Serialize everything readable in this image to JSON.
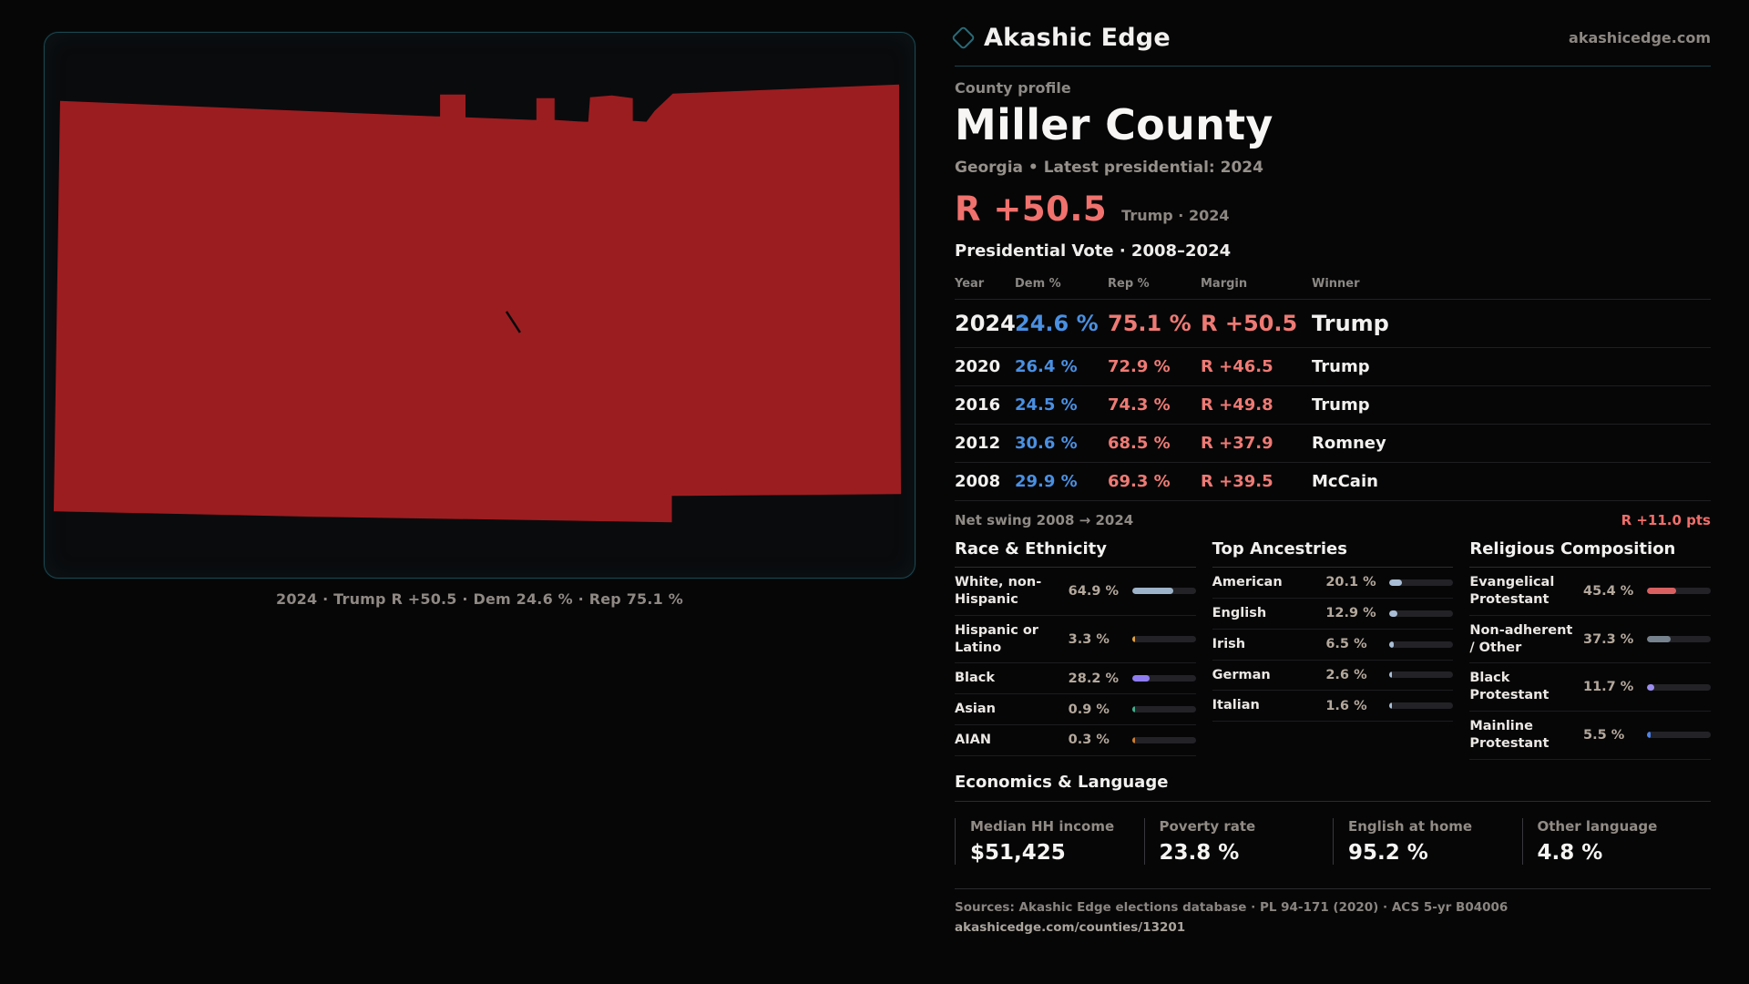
{
  "brand": {
    "name": "Akashic Edge",
    "domain": "akashicedge.com"
  },
  "profile": {
    "kicker": "County profile",
    "title": "Miller County",
    "subtitle": "Georgia • Latest presidential: 2024"
  },
  "headline": {
    "value": "R +50.5",
    "context": "Trump · 2024"
  },
  "map": {
    "caption": "2024 · Trump R +50.5 · Dem 24.6 % · Rep 75.1 %",
    "county_fill": "#9c1d20",
    "panel_border": "#1a4750"
  },
  "vote_table": {
    "title": "Presidential Vote · 2008–2024",
    "columns": {
      "year": "Year",
      "dem": "Dem %",
      "rep": "Rep %",
      "margin": "Margin",
      "winner": "Winner"
    },
    "rows": [
      {
        "year": "2024",
        "dem": "24.6 %",
        "rep": "75.1 %",
        "margin": "R +50.5",
        "winner": "Trump"
      },
      {
        "year": "2020",
        "dem": "26.4 %",
        "rep": "72.9 %",
        "margin": "R +46.5",
        "winner": "Trump"
      },
      {
        "year": "2016",
        "dem": "24.5 %",
        "rep": "74.3 %",
        "margin": "R +49.8",
        "winner": "Trump"
      },
      {
        "year": "2012",
        "dem": "30.6 %",
        "rep": "68.5 %",
        "margin": "R +37.9",
        "winner": "Romney"
      },
      {
        "year": "2008",
        "dem": "29.9 %",
        "rep": "69.3 %",
        "margin": "R +39.5",
        "winner": "McCain"
      }
    ]
  },
  "net_swing": {
    "label": "Net swing 2008 → 2024",
    "value": "R +11.0 pts"
  },
  "demographics": {
    "race": {
      "title": "Race & Ethnicity",
      "rows": [
        {
          "label": "White, non-Hispanic",
          "value": "64.9 %",
          "pct": 64.9,
          "color": "#9db3c9"
        },
        {
          "label": "Hispanic or Latino",
          "value": "3.3 %",
          "pct": 3.3,
          "color": "#e3a23c"
        },
        {
          "label": "Black",
          "value": "28.2 %",
          "pct": 28.2,
          "color": "#8f7df0"
        },
        {
          "label": "Asian",
          "value": "0.9 %",
          "pct": 0.9,
          "color": "#3fb08c"
        },
        {
          "label": "AIAN",
          "value": "0.3 %",
          "pct": 0.3,
          "color": "#cf7e2e"
        }
      ]
    },
    "ancestries": {
      "title": "Top Ancestries",
      "rows": [
        {
          "label": "American",
          "value": "20.1 %",
          "pct": 20.1,
          "color": "#a9bed6"
        },
        {
          "label": "English",
          "value": "12.9 %",
          "pct": 12.9,
          "color": "#a9bed6"
        },
        {
          "label": "Irish",
          "value": "6.5 %",
          "pct": 6.5,
          "color": "#a9bed6"
        },
        {
          "label": "German",
          "value": "2.6 %",
          "pct": 2.6,
          "color": "#a9bed6"
        },
        {
          "label": "Italian",
          "value": "1.6 %",
          "pct": 1.6,
          "color": "#a9bed6"
        }
      ]
    },
    "religion": {
      "title": "Religious Composition",
      "rows": [
        {
          "label": "Evangelical Protestant",
          "value": "45.4 %",
          "pct": 45.4,
          "color": "#d96060"
        },
        {
          "label": "Non-adherent / Other",
          "value": "37.3 %",
          "pct": 37.3,
          "color": "#77828f"
        },
        {
          "label": "Black Protestant",
          "value": "11.7 %",
          "pct": 11.7,
          "color": "#9c8df2"
        },
        {
          "label": "Mainline Protestant",
          "value": "5.5 %",
          "pct": 5.5,
          "color": "#4d82e8"
        }
      ]
    }
  },
  "economics": {
    "title": "Economics & Language",
    "stats": [
      {
        "label": "Median HH income",
        "value": "$51,425"
      },
      {
        "label": "Poverty rate",
        "value": "23.8 %"
      },
      {
        "label": "English at home",
        "value": "95.2 %"
      },
      {
        "label": "Other language",
        "value": "4.8 %"
      }
    ]
  },
  "footer": {
    "sources": "Sources: Akashic Edge elections database · PL 94-171 (2020) · ACS 5-yr B04006",
    "permalink": "akashicedge.com/counties/13201"
  }
}
